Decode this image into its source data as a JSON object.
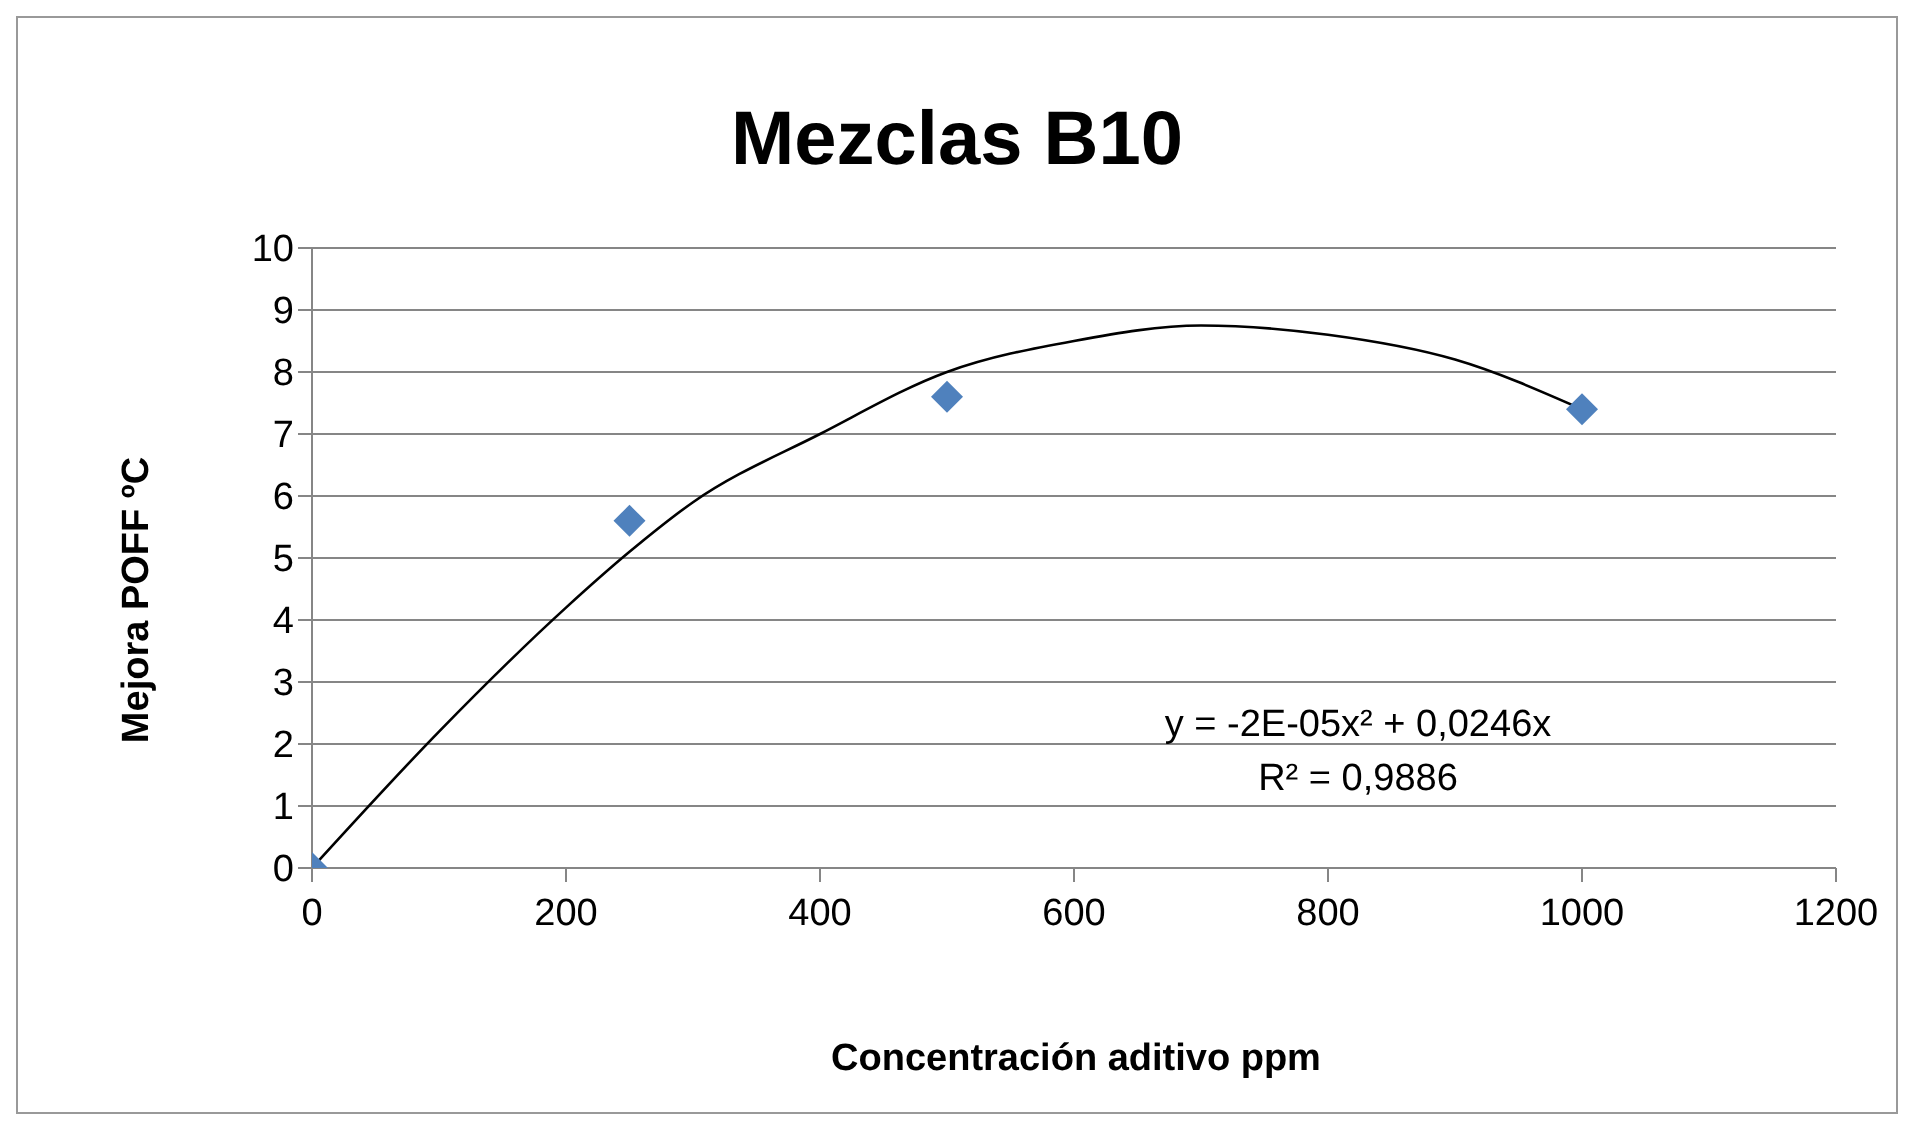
{
  "chart_data": {
    "type": "scatter",
    "title": "Mezclas B10",
    "xlabel": "Concentración aditivo ppm",
    "ylabel": "Mejora POFF ºC",
    "series": [
      {
        "color": "#4f81bd",
        "x": [
          0,
          250,
          500,
          1000
        ],
        "values": [
          0,
          5.6,
          7.6,
          7.4
        ],
        "marker": "diamond"
      },
      {
        "type": "line",
        "color": "#000000",
        "marker": "none",
        "x": [
          0,
          100,
          200,
          250,
          300,
          400,
          500,
          600,
          700,
          800,
          900,
          1000
        ],
        "values": [
          0,
          2.2,
          4.2,
          5.1,
          5.9,
          7.0,
          8.0,
          8.5,
          8.75,
          8.6,
          8.2,
          7.4
        ]
      }
    ],
    "annotations": [
      "y = -2E-05x² + 0,0246x",
      "R² = 0,9886"
    ],
    "xlim": [
      0,
      1200
    ],
    "xticks": [
      0,
      200,
      400,
      600,
      800,
      1000,
      1200
    ],
    "ylim": [
      0,
      10
    ],
    "yticks": [
      0,
      1,
      2,
      3,
      4,
      5,
      6,
      7,
      8,
      9,
      10
    ],
    "grid": "y"
  }
}
